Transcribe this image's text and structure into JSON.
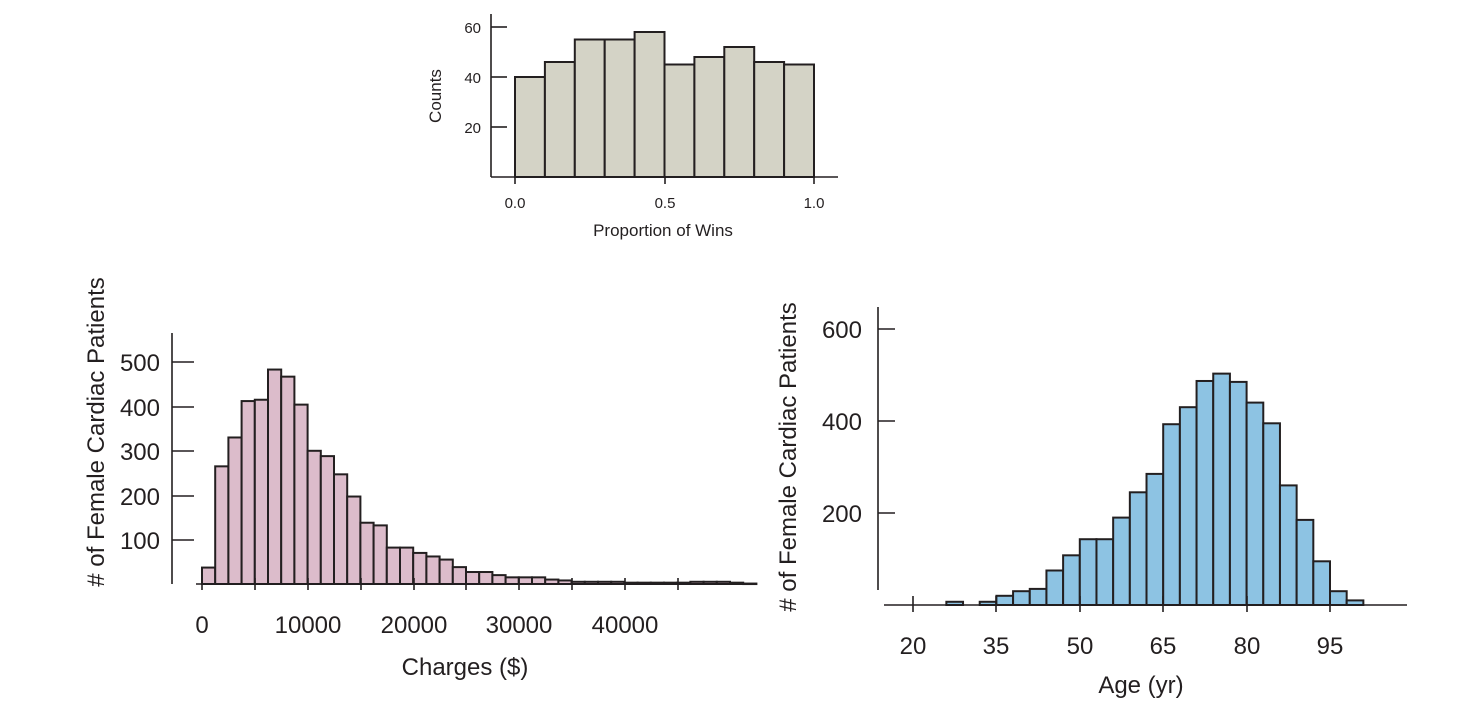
{
  "chart_data": [
    {
      "type": "bar",
      "subtype": "histogram",
      "xlabel": "Proportion of Wins",
      "ylabel": "Counts",
      "xlim": [
        0.0,
        1.0
      ],
      "ylim": [
        0,
        60
      ],
      "xticks": [
        "0.0",
        "0.5",
        "1.0"
      ],
      "yticks": [
        "20",
        "40",
        "60"
      ],
      "bin_width": 0.1,
      "bin_start": 0.0,
      "values": [
        40,
        46,
        55,
        55,
        58,
        45,
        48,
        52,
        46,
        45
      ],
      "color": "#d4d3c6",
      "grid": false
    },
    {
      "type": "bar",
      "subtype": "histogram",
      "xlabel": "Charges ($)",
      "ylabel": "# of Female Cardiac Patients",
      "xlim": [
        0,
        50000
      ],
      "ylim": [
        0,
        500
      ],
      "xticks": [
        "0",
        "10000",
        "20000",
        "30000",
        "40000"
      ],
      "yticks": [
        "100",
        "200",
        "300",
        "400",
        "500"
      ],
      "bin_width": 1250,
      "bin_start": 0,
      "values": [
        37,
        265,
        330,
        412,
        415,
        483,
        467,
        404,
        300,
        288,
        247,
        197,
        138,
        132,
        82,
        82,
        70,
        62,
        55,
        38,
        27,
        27,
        20,
        15,
        15,
        15,
        10,
        8,
        5,
        5,
        5,
        5,
        3,
        3,
        3,
        3,
        3,
        5,
        5,
        5,
        3,
        1
      ],
      "color": "#dcbccb",
      "grid": false
    },
    {
      "type": "bar",
      "subtype": "histogram",
      "xlabel": "Age (yr)",
      "ylabel": "# of Female Cardiac Patients",
      "xlim": [
        15,
        109
      ],
      "ylim": [
        0,
        600
      ],
      "xticks": [
        "20",
        "35",
        "50",
        "65",
        "80",
        "95"
      ],
      "yticks": [
        "200",
        "400",
        "600"
      ],
      "bin_width": 3,
      "bin_start": 26,
      "values": [
        7,
        0,
        7,
        20,
        30,
        35,
        75,
        108,
        143,
        143,
        190,
        245,
        285,
        393,
        430,
        487,
        503,
        485,
        440,
        395,
        260,
        185,
        95,
        30,
        10
      ],
      "color": "#8dc3e3",
      "grid": false
    }
  ]
}
